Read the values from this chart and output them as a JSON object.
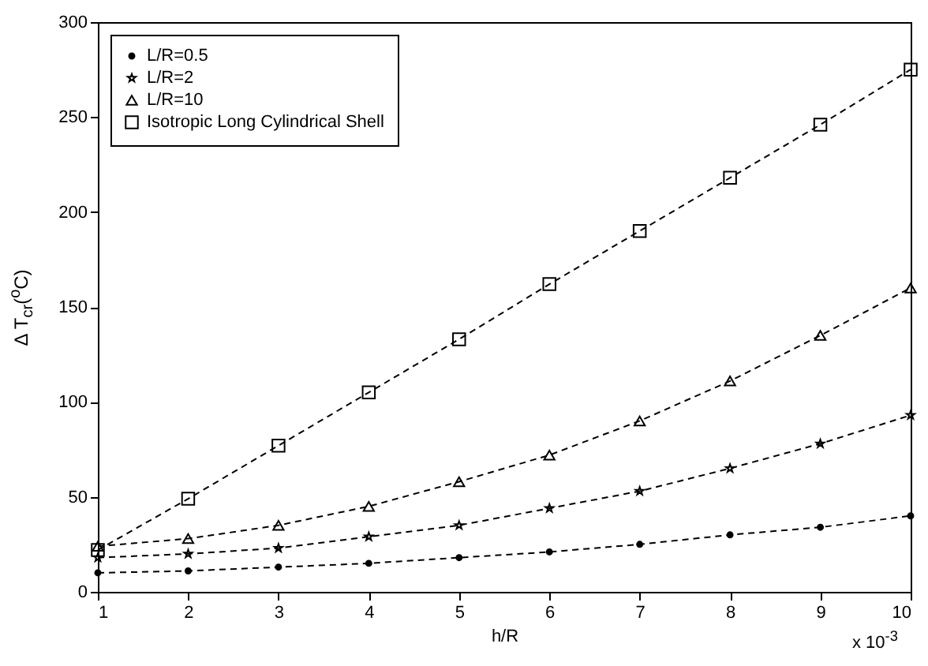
{
  "chart_data": {
    "type": "line",
    "xlabel": "h/R",
    "ylabel": "Δ T$_{cr}$($^{o}$C)",
    "x": [
      1,
      2,
      3,
      4,
      5,
      6,
      7,
      8,
      9,
      10
    ],
    "series": [
      {
        "name": "L/R=0.5",
        "color": "#000000",
        "marker": "circle",
        "values": [
          10,
          11,
          13,
          15,
          18,
          21,
          25,
          30,
          34,
          40
        ]
      },
      {
        "name": "L/R=2",
        "color": "#000000",
        "marker": "star",
        "values": [
          18,
          20,
          23,
          29,
          35,
          44,
          53,
          65,
          78,
          93
        ]
      },
      {
        "name": "L/R=10",
        "color": "#000000",
        "marker": "triangle",
        "values": [
          24,
          28,
          35,
          45,
          58,
          72,
          90,
          111,
          135,
          160
        ]
      },
      {
        "name": "Isotropic Long Cylindrical Shell",
        "color": "#000000",
        "marker": "square",
        "values": [
          22,
          49,
          77,
          105,
          133,
          162,
          190,
          218,
          246,
          275
        ]
      }
    ],
    "xlim": [
      1,
      10
    ],
    "xticks": [
      1,
      2,
      3,
      4,
      5,
      6,
      7,
      8,
      9,
      10
    ],
    "ylim": [
      0,
      300
    ],
    "yticks": [
      0,
      50,
      100,
      150,
      200,
      250,
      300
    ],
    "line_style": "dashed",
    "legend": "top left",
    "grid": false,
    "annotations": [
      "x 10$^{-3}$"
    ]
  }
}
